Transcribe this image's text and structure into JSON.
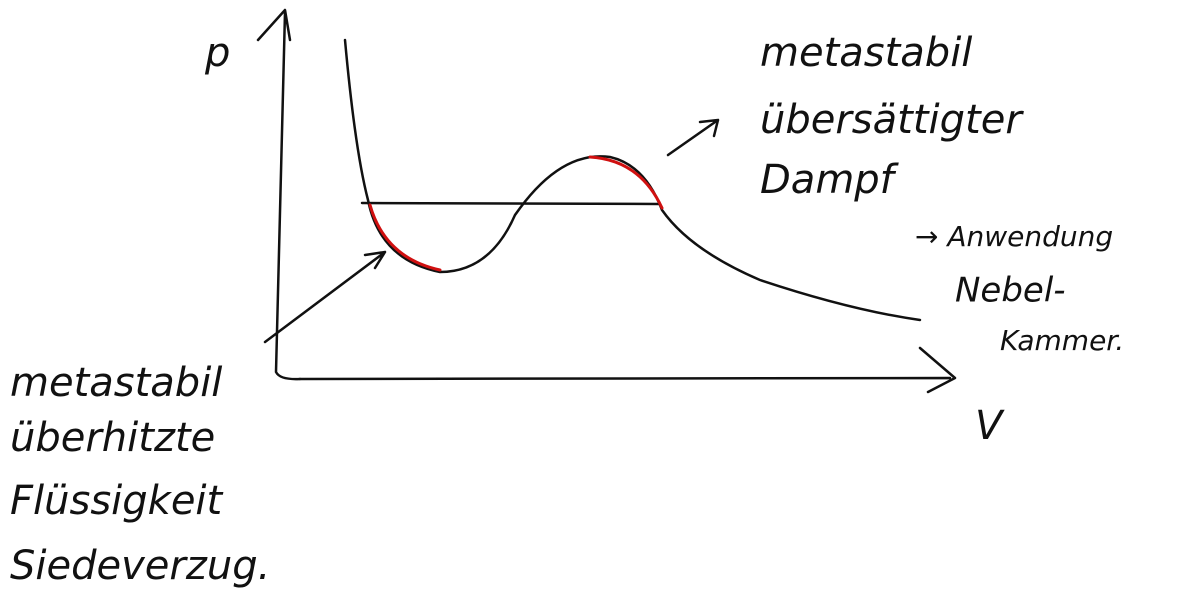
{
  "axes": {
    "y_label": "p",
    "x_label": "V"
  },
  "annotations": {
    "vapor": {
      "lines": [
        "metastabil",
        "übersättigter",
        "Dampf"
      ]
    },
    "application": {
      "lines": [
        "→ Anwendung",
        "Nebel-",
        "Kammer."
      ]
    },
    "liquid": {
      "lines": [
        "metastabil",
        "überhitzte",
        "Flüssigkeit",
        "Siedeverzug."
      ]
    }
  }
}
